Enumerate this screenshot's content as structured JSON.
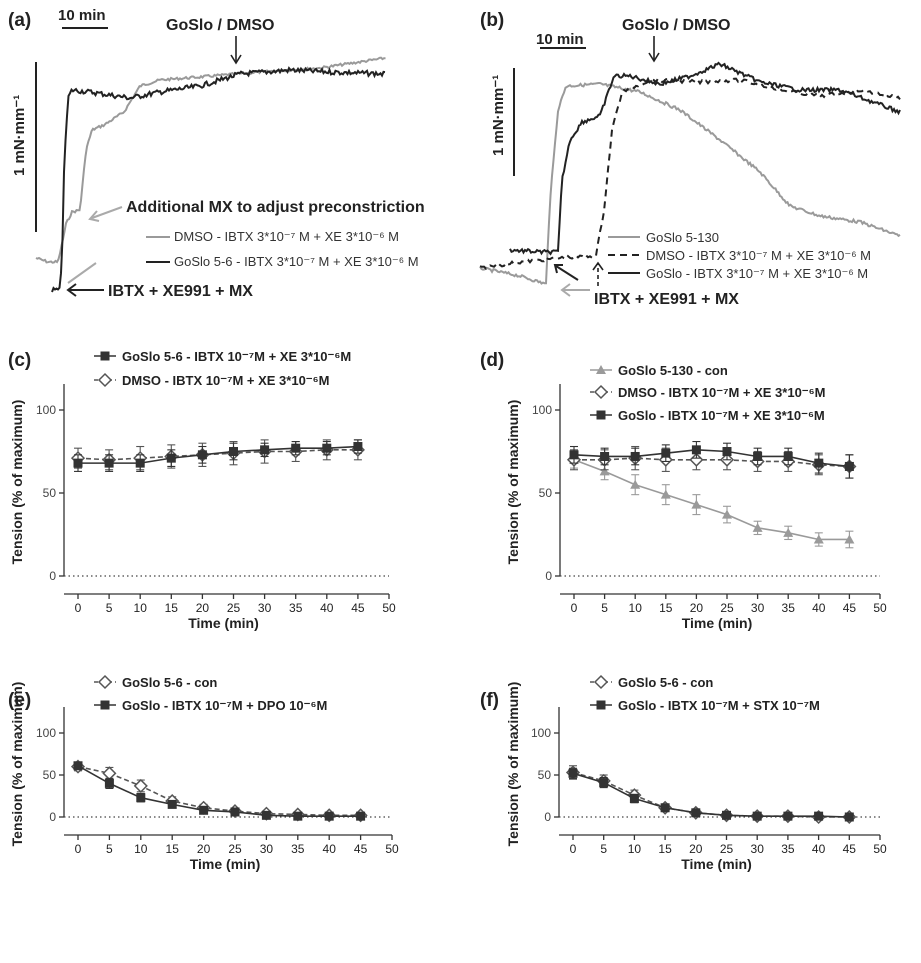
{
  "colors": {
    "black": "#222222",
    "gray": "#9a9a9a",
    "axis": "#333333"
  },
  "trace_panels": [
    {
      "id": "a",
      "panel_label": "(a)",
      "time_scale_label": "10 min",
      "tension_scale_label": "1 mN·mm⁻¹",
      "event_label": "GoSlo / DMSO",
      "annotation_mx": "Additional MX to adjust preconstriction",
      "annotation_start": "IBTX + XE991 + MX",
      "legend": [
        {
          "style": "gray-solid",
          "label": "DMSO - IBTX 3*10⁻⁷ M + XE 3*10⁻⁶ M"
        },
        {
          "style": "black-solid",
          "label": "GoSlo 5-6 - IBTX 3*10⁻⁷ M + XE 3*10⁻⁶ M"
        }
      ]
    },
    {
      "id": "b",
      "panel_label": "(b)",
      "time_scale_label": "10 min",
      "tension_scale_label": "1 mN·mm⁻¹",
      "event_label": "GoSlo / DMSO",
      "annotation_start": "IBTX + XE991 + MX",
      "legend": [
        {
          "style": "gray-solid",
          "label": "GoSlo 5-130"
        },
        {
          "style": "black-dashed",
          "label": "DMSO - IBTX 3*10⁻⁷ M + XE 3*10⁻⁶ M"
        },
        {
          "style": "black-solid",
          "label": "GoSlo -  IBTX 3*10⁻⁷ M + XE 3*10⁻⁶ M"
        }
      ]
    }
  ],
  "chart_data": [
    {
      "panel_label": "(c)",
      "type": "line",
      "xlabel": "Time (min)",
      "ylabel": "Tension (% of maximum)",
      "x": [
        0,
        5,
        10,
        15,
        20,
        25,
        30,
        35,
        40,
        45
      ],
      "xlim": [
        0,
        50
      ],
      "ylim": [
        0,
        100
      ],
      "xticks": [
        "0",
        "5",
        "10",
        "15",
        "20",
        "25",
        "30",
        "35",
        "40",
        "45",
        "50"
      ],
      "yticks": [
        "0",
        "50",
        "100"
      ],
      "zero_line": true,
      "series": [
        {
          "name": "DMSO - IBTX 10⁻⁷M + XE 3*10⁻⁶M",
          "marker": "diamond-open",
          "line": "dashed",
          "color": "#555555",
          "values": [
            71,
            70,
            71,
            72,
            73,
            74,
            75,
            75,
            76,
            76
          ],
          "errors": [
            6,
            6,
            7,
            7,
            7,
            7,
            7,
            6,
            6,
            6
          ]
        },
        {
          "name": "GoSlo 5-6 - IBTX 10⁻⁷M + XE 3*10⁻⁶M",
          "marker": "square-filled",
          "line": "solid",
          "color": "#333333",
          "values": [
            68,
            68,
            68,
            71,
            73,
            75,
            76,
            77,
            77,
            78
          ],
          "errors": [
            5,
            5,
            5,
            5,
            5,
            5,
            4,
            4,
            4,
            4
          ]
        }
      ]
    },
    {
      "panel_label": "(d)",
      "type": "line",
      "xlabel": "Time (min)",
      "ylabel": "Tension (% of maximum)",
      "x": [
        0,
        5,
        10,
        15,
        20,
        25,
        30,
        35,
        40,
        45
      ],
      "xlim": [
        0,
        50
      ],
      "ylim": [
        0,
        100
      ],
      "xticks": [
        "0",
        "5",
        "10",
        "15",
        "20",
        "25",
        "30",
        "35",
        "40",
        "45",
        "50"
      ],
      "yticks": [
        "0",
        "50",
        "100"
      ],
      "zero_line": true,
      "series": [
        {
          "name": "GoSlo 5-130 - con",
          "marker": "triangle-filled",
          "line": "solid",
          "color": "#9a9a9a",
          "values": [
            70,
            63,
            55,
            49,
            43,
            37,
            29,
            26,
            22,
            22
          ],
          "errors": [
            5,
            5,
            6,
            6,
            6,
            5,
            4,
            4,
            4,
            5
          ]
        },
        {
          "name": "DMSO - IBTX 10⁻⁷M + XE 3*10⁻⁶M",
          "marker": "diamond-open",
          "line": "dashed",
          "color": "#555555",
          "values": [
            70,
            70,
            71,
            70,
            70,
            70,
            69,
            69,
            67,
            66
          ],
          "errors": [
            6,
            6,
            7,
            7,
            6,
            6,
            6,
            6,
            6,
            7
          ]
        },
        {
          "name": "GoSlo - IBTX 10⁻⁷M + XE 3*10⁻⁶M",
          "marker": "square-filled",
          "line": "solid",
          "color": "#333333",
          "values": [
            73,
            72,
            72,
            74,
            76,
            75,
            72,
            72,
            68,
            66
          ],
          "errors": [
            5,
            5,
            5,
            5,
            5,
            5,
            5,
            5,
            6,
            7
          ]
        }
      ]
    },
    {
      "panel_label": "(e)",
      "type": "line",
      "xlabel": "Time (min)",
      "ylabel": "Tension (% of maximum)",
      "x": [
        0,
        5,
        10,
        15,
        20,
        25,
        30,
        35,
        40,
        45
      ],
      "xlim": [
        0,
        50
      ],
      "ylim": [
        0,
        100
      ],
      "xticks": [
        "0",
        "5",
        "10",
        "15",
        "20",
        "25",
        "30",
        "35",
        "40",
        "45",
        "50"
      ],
      "yticks": [
        "0",
        "50",
        "100"
      ],
      "zero_line": true,
      "series": [
        {
          "name": "GoSlo 5-6 - con",
          "marker": "diamond-open",
          "line": "dashed",
          "color": "#555555",
          "values": [
            60,
            52,
            37,
            19,
            11,
            7,
            4,
            3,
            2,
            2
          ],
          "errors": [
            5,
            7,
            7,
            5,
            4,
            3,
            2,
            1,
            1,
            1
          ]
        },
        {
          "name": "GoSlo - IBTX 10⁻⁷M + DPO 10⁻⁶M",
          "marker": "square-filled",
          "line": "solid",
          "color": "#333333",
          "values": [
            61,
            40,
            23,
            15,
            8,
            6,
            2,
            1,
            1,
            1
          ],
          "errors": [
            4,
            6,
            5,
            4,
            3,
            2,
            1,
            1,
            1,
            1
          ]
        }
      ]
    },
    {
      "panel_label": "(f)",
      "type": "line",
      "xlabel": "Time (min)",
      "ylabel": "Tension (% of maximum)",
      "x": [
        0,
        5,
        10,
        15,
        20,
        25,
        30,
        35,
        40,
        45
      ],
      "xlim": [
        0,
        50
      ],
      "ylim": [
        0,
        100
      ],
      "xticks": [
        "0",
        "5",
        "10",
        "15",
        "20",
        "25",
        "30",
        "35",
        "40",
        "45",
        "50"
      ],
      "yticks": [
        "0",
        "50",
        "100"
      ],
      "zero_line": true,
      "series": [
        {
          "name": "GoSlo 5-6 - con",
          "marker": "diamond-open",
          "line": "dashed",
          "color": "#555555",
          "values": [
            53,
            43,
            26,
            11,
            5,
            2,
            1,
            1,
            0,
            0
          ],
          "errors": [
            8,
            7,
            6,
            4,
            2,
            1,
            1,
            1,
            1,
            1
          ]
        },
        {
          "name": "GoSlo - IBTX 10⁻⁷M + STX 10⁻⁷M",
          "marker": "square-filled",
          "line": "solid",
          "color": "#333333",
          "values": [
            52,
            41,
            22,
            11,
            5,
            2,
            1,
            1,
            1,
            0
          ],
          "errors": [
            6,
            6,
            5,
            3,
            2,
            1,
            1,
            1,
            1,
            1
          ]
        }
      ]
    }
  ]
}
